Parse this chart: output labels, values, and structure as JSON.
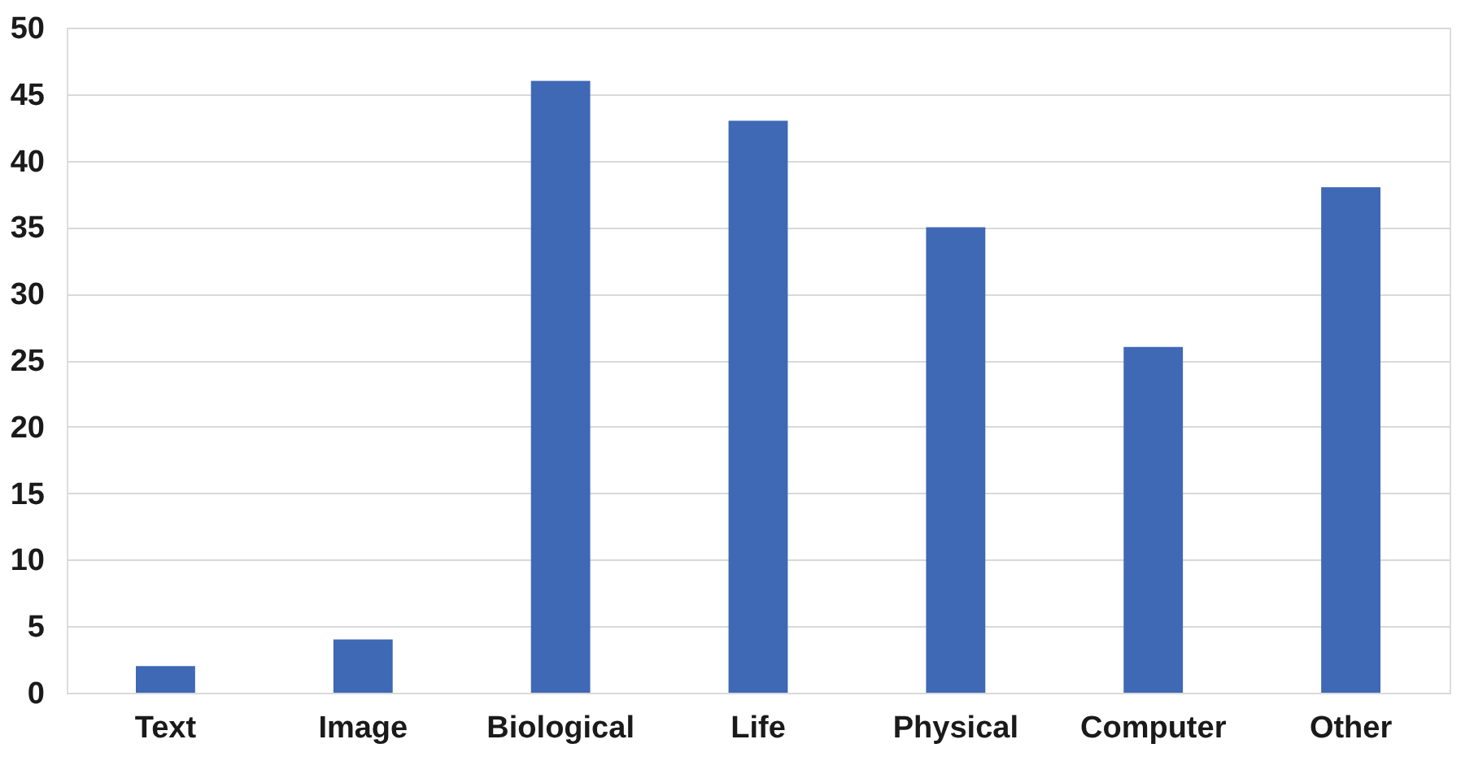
{
  "chart_data": {
    "type": "bar",
    "categories": [
      "Text",
      "Image",
      "Biological",
      "Life",
      "Physical",
      "Computer",
      "Other"
    ],
    "values": [
      2,
      4,
      46,
      43,
      35,
      26,
      38
    ],
    "color": "#3f68b5",
    "ylim": [
      0,
      50
    ],
    "yticks": [
      0,
      5,
      10,
      15,
      20,
      25,
      30,
      35,
      40,
      45,
      50
    ],
    "grid": "y"
  }
}
